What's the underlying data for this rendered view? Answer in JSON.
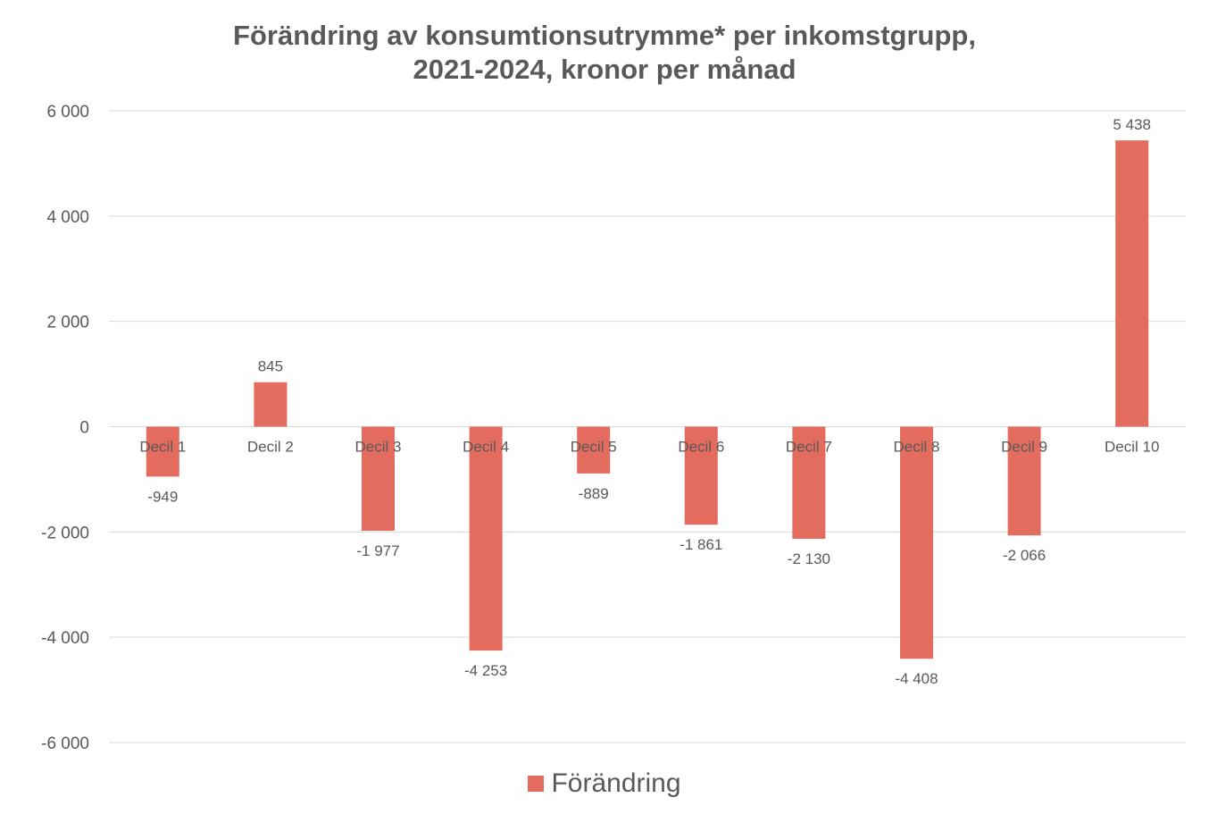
{
  "chart_data": {
    "type": "bar",
    "title_line1": "Förändring av konsumtionsutrymme* per inkomstgrupp,",
    "title_line2": "2021-2024, kronor per månad",
    "categories": [
      "Decil 1",
      "Decil 2",
      "Decil 3",
      "Decil 4",
      "Decil 5",
      "Decil 6",
      "Decil 7",
      "Decil 8",
      "Decil 9",
      "Decil 10"
    ],
    "series": [
      {
        "name": "Förändring",
        "color": "#E46C5F",
        "values": [
          -949,
          845,
          -1977,
          -4253,
          -889,
          -1861,
          -2130,
          -4408,
          -2066,
          5438
        ],
        "labels": [
          "-949",
          "845",
          "-1 977",
          "-4 253",
          "-889",
          "-1 861",
          "-2 130",
          "-4 408",
          "-2 066",
          "5 438"
        ]
      }
    ],
    "ylim": [
      -6000,
      6000
    ],
    "yticks": [
      6000,
      4000,
      2000,
      0,
      -2000,
      -4000,
      -6000
    ],
    "ytick_labels": [
      "6 000",
      "4 000",
      "2 000",
      "0",
      "-2 000",
      "-4 000",
      "-6 000"
    ],
    "grid": true,
    "legend_position": "bottom",
    "colors": {
      "bar": "#E46C5F",
      "grid": "#D9D9D9",
      "text": "#595959"
    }
  }
}
